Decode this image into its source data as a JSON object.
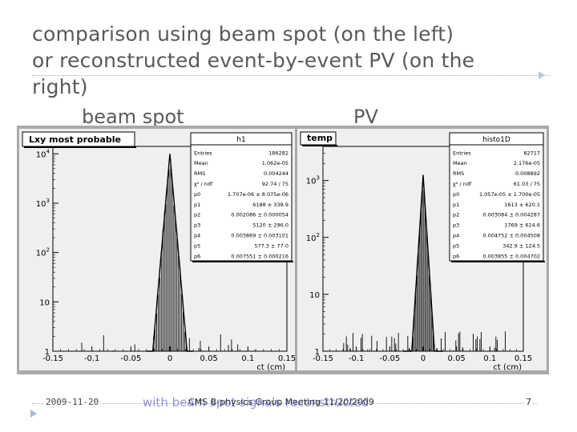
{
  "slide": {
    "title_line1": "comparison using beam spot (on the left)",
    "title_line2": "or reconstructed event-by-event PV (on the",
    "title_line3": "right)",
    "subhead_left": "beam spot",
    "subhead_right": "PV"
  },
  "footer": {
    "date": "2009-11-20",
    "center": "CMS B-physics Group Meeting 11/20/2009",
    "overlay": "with beam spot signals reconstructed",
    "page": "7"
  },
  "colors": {
    "panel_bg": "#efefef",
    "frame": "#a9a9a9",
    "title": "#595959",
    "overlay": "#8080d8"
  },
  "chart_data": [
    {
      "type": "histogram",
      "id": "left",
      "title": "L_xy most probable",
      "stats_title": "h1",
      "xlabel": "ct (cm)",
      "xlim": [
        -0.15,
        0.15
      ],
      "x_ticks": [
        "-0.15",
        "-0.1",
        "-0.05",
        "0",
        "0.05",
        "0.1",
        "0.15"
      ],
      "y_scale": "log",
      "y_ticks": [
        "1",
        "10",
        "10^2",
        "10^3",
        "10^4"
      ],
      "stats": [
        {
          "label": "Entries",
          "value": "186282"
        },
        {
          "label": "Mean",
          "value": "1.062e-05"
        },
        {
          "label": "RMS",
          "value": "0.004244"
        },
        {
          "label": "χ² / ndf",
          "value": "92.74 / 75"
        },
        {
          "label": "p0",
          "value": "1.707e-06 ± 8.075e-06"
        },
        {
          "label": "p1",
          "value": "6188 ± 338.9"
        },
        {
          "label": "p2",
          "value": "0.002086 ± 0.000054"
        },
        {
          "label": "p3",
          "value": "5120 ± 296.0"
        },
        {
          "label": "p4",
          "value": "0.003869 ± 0.003101"
        },
        {
          "label": "p5",
          "value": "577.3 ± 77.0"
        },
        {
          "label": "p6",
          "value": "0.007551 ± 0.000216"
        }
      ]
    },
    {
      "type": "histogram",
      "id": "right",
      "title": "temp",
      "stats_title": "histo1D",
      "xlabel": "ct (cm)",
      "xlim": [
        -0.15,
        0.15
      ],
      "x_ticks": [
        "-0.15",
        "-0.1",
        "-0.05",
        "0",
        "0.05",
        "0.1",
        "0.15"
      ],
      "y_scale": "log",
      "y_ticks": [
        "1",
        "10",
        "10^2",
        "10^3"
      ],
      "stats": [
        {
          "label": "Entries",
          "value": "82717"
        },
        {
          "label": "Mean",
          "value": "2.176e-05"
        },
        {
          "label": "RMS",
          "value": "0.008892"
        },
        {
          "label": "χ² / ndf",
          "value": "61.03 / 75"
        },
        {
          "label": "p0",
          "value": "1.057e-05 ± 1.700e-05"
        },
        {
          "label": "p1",
          "value": "1613 ± 620.1"
        },
        {
          "label": "p2",
          "value": "0.003084 ± 0.004287"
        },
        {
          "label": "p3",
          "value": "1769 ± 624.6"
        },
        {
          "label": "p4",
          "value": "0.004752 ± 0.004508"
        },
        {
          "label": "p5",
          "value": "342.9 ± 124.5"
        },
        {
          "label": "p6",
          "value": "0.003855 ± 0.004702"
        }
      ]
    }
  ]
}
